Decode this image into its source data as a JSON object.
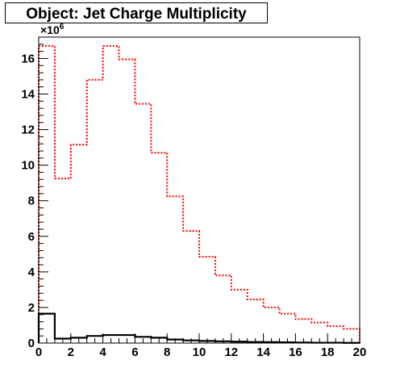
{
  "title": "Object: Jet Charge Multiplicity",
  "chart_data": {
    "type": "histogram",
    "title": "Object: Jet Charge Multiplicity",
    "xlabel": "",
    "ylabel": "",
    "xlim": [
      0,
      20
    ],
    "ylim": [
      0,
      17.2
    ],
    "y_multiplier_label": "×10",
    "y_multiplier_exponent": "6",
    "x_ticks": [
      0,
      2,
      4,
      6,
      8,
      10,
      12,
      14,
      16,
      18,
      20
    ],
    "y_ticks": [
      0,
      2,
      4,
      6,
      8,
      10,
      12,
      14,
      16
    ],
    "bin_edges": [
      0,
      1,
      2,
      3,
      4,
      5,
      6,
      7,
      8,
      9,
      10,
      11,
      12,
      13,
      14,
      15,
      16,
      17,
      18,
      19,
      20
    ],
    "series": [
      {
        "color": "#ff0000",
        "style": "dotted",
        "values": [
          16.7,
          9.25,
          11.15,
          14.8,
          16.7,
          15.95,
          13.45,
          10.7,
          8.25,
          6.3,
          4.85,
          3.8,
          3.0,
          2.45,
          2.0,
          1.65,
          1.35,
          1.15,
          0.95,
          0.8
        ]
      },
      {
        "color": "#000000",
        "style": "solid",
        "values": [
          1.65,
          0.25,
          0.3,
          0.4,
          0.45,
          0.45,
          0.35,
          0.3,
          0.2,
          0.15,
          0.12,
          0.1,
          0.08,
          0.06,
          0.05,
          0.04,
          0.03,
          0.02,
          0.02,
          0.01
        ]
      }
    ]
  }
}
